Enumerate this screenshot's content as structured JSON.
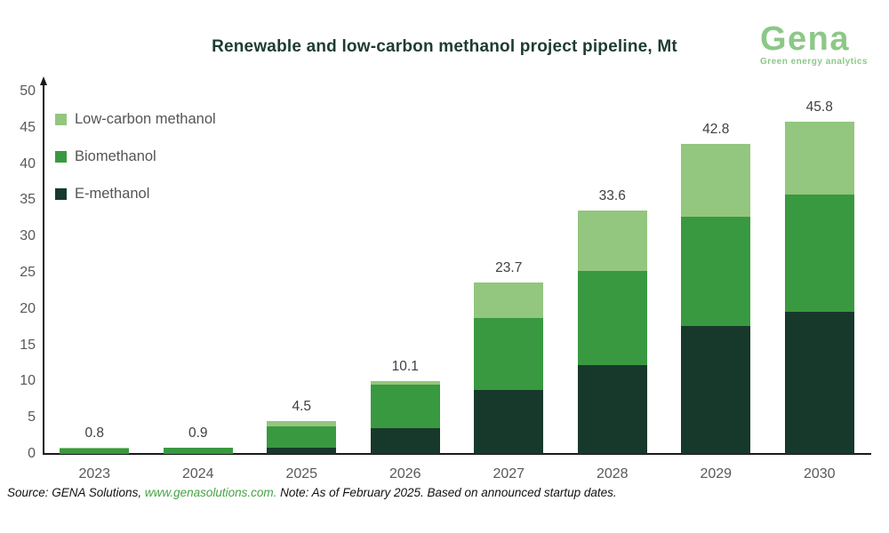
{
  "header": {
    "title": "Renewable and low-carbon methanol project pipeline, Mt",
    "logo": {
      "name": "Gena",
      "tagline": "Green energy analytics"
    }
  },
  "colors": {
    "title_text": "#1E3C2F",
    "logo_green": "#8CC887",
    "axis_text": "#595959",
    "total_label_text": "#404040",
    "legend_text": "#555555",
    "axis_line": "#1a1a1a",
    "low_carbon": "#93C67E",
    "biomethanol": "#399940",
    "e_methanol": "#17392B",
    "link_green": "#44A344"
  },
  "chart_data": {
    "type": "bar",
    "stacked": true,
    "title": "Renewable and low-carbon methanol project pipeline, Mt",
    "categories": [
      "2023",
      "2024",
      "2025",
      "2026",
      "2027",
      "2028",
      "2029",
      "2030"
    ],
    "series": [
      {
        "name": "E-methanol",
        "color_key": "e_methanol",
        "values": [
          0.0,
          0.0,
          0.9,
          3.6,
          8.8,
          12.3,
          17.7,
          19.6
        ]
      },
      {
        "name": "Biomethanol",
        "color_key": "biomethanol",
        "values": [
          0.7,
          0.8,
          2.9,
          5.9,
          10.0,
          13.0,
          15.0,
          16.2
        ]
      },
      {
        "name": "Low-carbon methanol",
        "color_key": "low_carbon",
        "values": [
          0.1,
          0.1,
          0.7,
          0.6,
          4.9,
          8.3,
          10.1,
          10.0
        ]
      }
    ],
    "totals": [
      0.8,
      0.9,
      4.5,
      10.1,
      23.7,
      33.6,
      42.8,
      45.8
    ],
    "ylim": [
      0,
      50
    ],
    "ytick_step": 5,
    "yticks": [
      0,
      5,
      10,
      15,
      20,
      25,
      30,
      35,
      40,
      45,
      50
    ],
    "grid": false,
    "legend_position": "top-left",
    "legend_items": [
      {
        "label": "Low-carbon methanol",
        "color_key": "low_carbon"
      },
      {
        "label": "Biomethanol",
        "color_key": "biomethanol"
      },
      {
        "label": "E-methanol",
        "color_key": "e_methanol"
      }
    ]
  },
  "footer": {
    "source_prefix": "Source: GENA Solutions, ",
    "source_link": "www.genasolutions.com.",
    "source_suffix": " Note: As of February 2025. Based on announced startup dates."
  }
}
